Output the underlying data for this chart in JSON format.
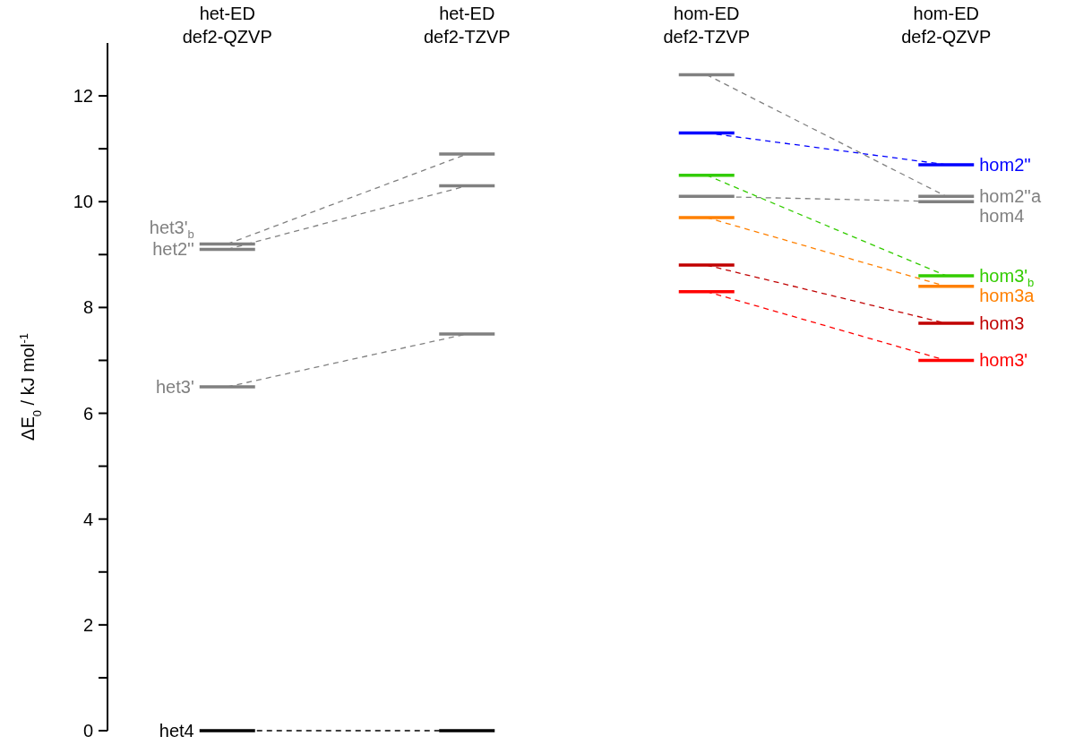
{
  "chart_data": {
    "type": "line",
    "ylabel": "ΔE$_{0}$ / kJ mol$^{-1}$",
    "categories": [
      "het-ED\ndef2-QZVP",
      "het-ED\ndef2-TZVP",
      "hom-ED\ndef2-TZVP",
      "hom-ED\ndef2-QZVP"
    ],
    "ylim": [
      0,
      13
    ],
    "yticks": [
      0,
      {
        "value": 1,
        "label": null
      },
      2,
      {
        "value": 3,
        "label": null
      },
      4,
      {
        "value": 5,
        "label": null
      },
      6,
      {
        "value": 7,
        "label": null
      },
      8,
      {
        "value": 9,
        "label": null
      },
      10,
      {
        "value": 11,
        "label": null
      },
      12
    ],
    "line_style": "dashed",
    "series": [
      {
        "name": "het4",
        "color": "#000000",
        "values": [
          0,
          0,
          null,
          null
        ]
      },
      {
        "name": "het3'",
        "color": "#808080",
        "values": [
          6.5,
          7.5,
          null,
          null
        ]
      },
      {
        "name": "het2''",
        "color": "#808080",
        "values": [
          9.1,
          10.3,
          null,
          null
        ]
      },
      {
        "name": "het3'$_{b}$",
        "color": "#808080",
        "values": [
          9.2,
          10.9,
          null,
          null
        ]
      },
      {
        "name": "hom2''a",
        "color": "#808080",
        "values": [
          null,
          null,
          12.4,
          10.1
        ]
      },
      {
        "name": "hom2''",
        "color": "#0000ff",
        "values": [
          null,
          null,
          11.3,
          10.7
        ]
      },
      {
        "name": "hom4",
        "color": "#808080",
        "values": [
          null,
          null,
          10.1,
          10.0
        ]
      },
      {
        "name": "hom3'$_{b}$",
        "color": "#33cc00",
        "values": [
          null,
          null,
          10.5,
          8.6
        ]
      },
      {
        "name": "hom3a",
        "color": "#ff8000",
        "values": [
          null,
          null,
          9.7,
          8.4
        ]
      },
      {
        "name": "hom3",
        "color": "#c00000",
        "values": [
          null,
          null,
          8.8,
          7.7
        ]
      },
      {
        "name": "hom3'",
        "color": "#ff0000",
        "values": [
          null,
          null,
          8.3,
          7.0
        ]
      }
    ]
  }
}
